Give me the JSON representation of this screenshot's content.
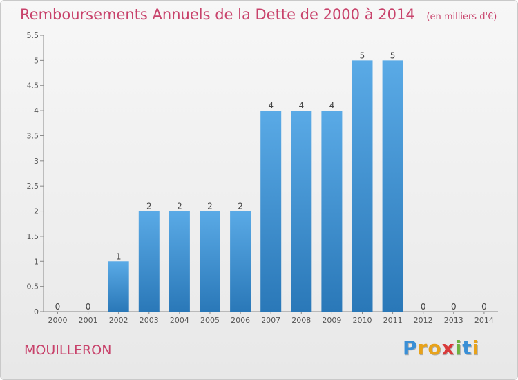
{
  "title": "Remboursements Annuels de la Dette de 2000 à 2014",
  "unit": "(en milliers d'€)",
  "commune": "MOUILLERON",
  "logo": {
    "text": "Proxiti",
    "colors": [
      "#3a8fd6",
      "#e8a21a",
      "#e8a21a",
      "#d93a3a",
      "#6cb33e",
      "#3a8fd6",
      "#e8a21a"
    ]
  },
  "colors": {
    "bar_light": "#5aaae6",
    "bar_dark": "#2a78b8",
    "title": "#c8426b",
    "axis": "#555555"
  },
  "chart_data": {
    "type": "bar",
    "categories": [
      "2000",
      "2001",
      "2002",
      "2003",
      "2004",
      "2005",
      "2006",
      "2007",
      "2008",
      "2009",
      "2010",
      "2011",
      "2012",
      "2013",
      "2014"
    ],
    "values": [
      0,
      0,
      1,
      2,
      2,
      2,
      2,
      4,
      4,
      4,
      5,
      5,
      0,
      0,
      0
    ],
    "data_labels": [
      "0",
      "0",
      "1",
      "2",
      "2",
      "2",
      "2",
      "4",
      "4",
      "4",
      "5",
      "5",
      "0",
      "0",
      "0"
    ],
    "y_ticks": [
      "0",
      "0.5",
      "1",
      "1.5",
      "2",
      "2.5",
      "3",
      "3.5",
      "4",
      "4.5",
      "5",
      "5.5"
    ],
    "ylim": [
      0,
      5.5
    ],
    "grid": false,
    "legend": "none"
  }
}
